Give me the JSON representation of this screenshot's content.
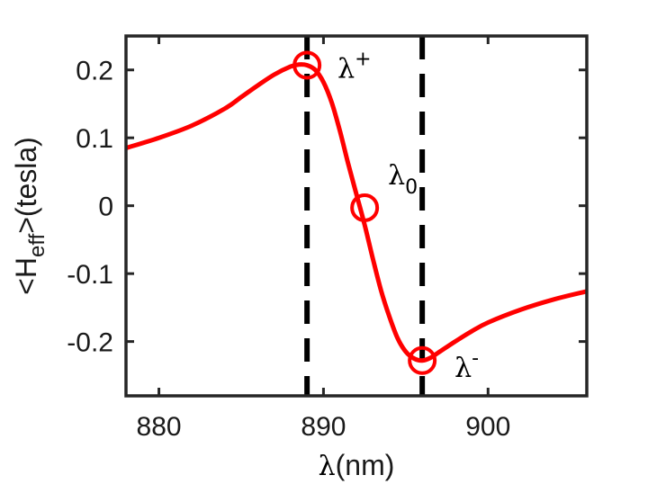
{
  "chart_data": {
    "type": "line",
    "title": "",
    "xlabel": {
      "symbol": "λ",
      "unit": "(nm)"
    },
    "ylabel": {
      "prefix": "<H",
      "subscript": "eff",
      "suffix": ">(tesla)"
    },
    "xlim": [
      878,
      906
    ],
    "ylim": [
      -0.28,
      0.25
    ],
    "xticks": [
      880,
      890,
      900
    ],
    "yticks": [
      -0.2,
      -0.1,
      0,
      0.1,
      0.2
    ],
    "ytick_labels": [
      "-0.2",
      "-0.1",
      "0",
      "0.1",
      "0.2"
    ],
    "xtick_labels": [
      "880",
      "890",
      "900"
    ],
    "series": [
      {
        "color": "#ff0000",
        "x": [
          878,
          880,
          882,
          884,
          885,
          886,
          887,
          888,
          888.5,
          889,
          889.5,
          890,
          890.5,
          891,
          891.5,
          892,
          892.5,
          893,
          893.5,
          894,
          894.5,
          895,
          895.5,
          896,
          896.5,
          897,
          898,
          899,
          900,
          902,
          904,
          906
        ],
        "y": [
          0.085,
          0.1,
          0.118,
          0.143,
          0.16,
          0.177,
          0.193,
          0.205,
          0.208,
          0.207,
          0.2,
          0.182,
          0.152,
          0.11,
          0.062,
          0.017,
          -0.028,
          -0.078,
          -0.125,
          -0.163,
          -0.195,
          -0.215,
          -0.225,
          -0.228,
          -0.224,
          -0.216,
          -0.2,
          -0.185,
          -0.172,
          -0.153,
          -0.138,
          -0.126
        ]
      }
    ],
    "vlines": [
      889,
      896
    ],
    "markers": [
      {
        "x": 889,
        "y": 0.207,
        "label": "λ",
        "sup": "+",
        "sub": ""
      },
      {
        "x": 892.5,
        "y": -0.003,
        "label": "λ",
        "sup": "",
        "sub": "0"
      },
      {
        "x": 896,
        "y": -0.228,
        "label": "λ",
        "sup": "-",
        "sub": ""
      }
    ],
    "grid": false,
    "legend": "none"
  }
}
